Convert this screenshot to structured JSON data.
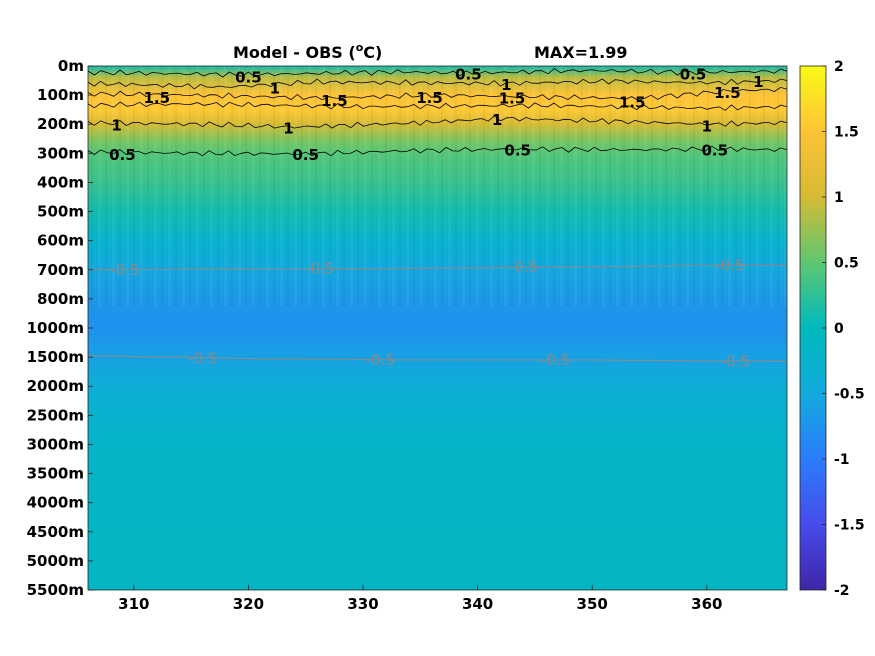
{
  "chart_data": {
    "type": "heatmap",
    "title": "Model - OBS (",
    "title_unit_sup": "o",
    "title_unit_end": "C)",
    "max_label": "MAX=1.99",
    "colormap": "parula",
    "clim": [
      -2,
      2
    ],
    "xlim": [
      306,
      367
    ],
    "x_ticks": [
      310,
      320,
      330,
      340,
      350,
      360
    ],
    "x_tick_labels": [
      "310",
      "320",
      "330",
      "340",
      "350",
      "360"
    ],
    "y_tick_labels": [
      "0m",
      "100m",
      "200m",
      "300m",
      "400m",
      "500m",
      "600m",
      "700m",
      "800m",
      "1000m",
      "1500m",
      "2000m",
      "2500m",
      "3000m",
      "3500m",
      "4000m",
      "4500m",
      "5000m",
      "5500m"
    ],
    "colorbar_ticks": [
      2,
      1.5,
      1,
      0.5,
      0,
      -0.5,
      -1,
      -1.5,
      -2
    ],
    "colorbar_tick_labels": [
      "2",
      "1.5",
      "1",
      "0.5",
      "0",
      "-0.5",
      "-1",
      "-1.5",
      "-2"
    ],
    "depth_profile": [
      {
        "level": 0,
        "value": 0.1
      },
      {
        "level": 0.4,
        "value": 0.9
      },
      {
        "level": 1,
        "value": 1.5
      },
      {
        "level": 1.5,
        "value": 1.55
      },
      {
        "level": 2,
        "value": 1.0
      },
      {
        "level": 2.6,
        "value": 0.6
      },
      {
        "level": 3,
        "value": 0.45
      },
      {
        "level": 4,
        "value": 0.3
      },
      {
        "level": 5,
        "value": 0.1
      },
      {
        "level": 6,
        "value": -0.25
      },
      {
        "level": 7,
        "value": -0.52
      },
      {
        "level": 8,
        "value": -0.7
      },
      {
        "level": 9,
        "value": -0.78
      },
      {
        "level": 10,
        "value": -0.6
      },
      {
        "level": 11,
        "value": -0.38
      },
      {
        "level": 12,
        "value": -0.25
      },
      {
        "level": 13,
        "value": -0.18
      },
      {
        "level": 14,
        "value": -0.14
      },
      {
        "level": 18,
        "value": -0.1
      }
    ],
    "contour_labels": [
      {
        "text": "0.5",
        "x": 320.0,
        "level": 0.4,
        "style": "pos"
      },
      {
        "text": "1",
        "x": 322.3,
        "level": 0.78,
        "style": "pos"
      },
      {
        "text": "1.5",
        "x": 312.0,
        "level": 1.1,
        "style": "pos"
      },
      {
        "text": "1.5",
        "x": 327.5,
        "level": 1.2,
        "style": "pos"
      },
      {
        "text": "0.5",
        "x": 339.2,
        "level": 0.3,
        "style": "pos"
      },
      {
        "text": "1",
        "x": 342.5,
        "level": 0.65,
        "style": "pos"
      },
      {
        "text": "1.5",
        "x": 335.8,
        "level": 1.1,
        "style": "pos"
      },
      {
        "text": "1.5",
        "x": 343.0,
        "level": 1.12,
        "style": "pos"
      },
      {
        "text": "1.5",
        "x": 353.5,
        "level": 1.25,
        "style": "pos"
      },
      {
        "text": "0.5",
        "x": 358.8,
        "level": 0.3,
        "style": "pos"
      },
      {
        "text": "1",
        "x": 364.5,
        "level": 0.55,
        "style": "pos"
      },
      {
        "text": "1.5",
        "x": 361.8,
        "level": 0.92,
        "style": "pos"
      },
      {
        "text": "1",
        "x": 308.5,
        "level": 2.05,
        "style": "pos"
      },
      {
        "text": "1",
        "x": 323.5,
        "level": 2.15,
        "style": "pos"
      },
      {
        "text": "1",
        "x": 341.7,
        "level": 1.85,
        "style": "pos"
      },
      {
        "text": "1",
        "x": 360.0,
        "level": 2.08,
        "style": "pos"
      },
      {
        "text": "0.5",
        "x": 309.0,
        "level": 3.05,
        "style": "pos"
      },
      {
        "text": "0.5",
        "x": 325.0,
        "level": 3.05,
        "style": "pos"
      },
      {
        "text": "0.5",
        "x": 343.5,
        "level": 2.9,
        "style": "pos"
      },
      {
        "text": "0.5",
        "x": 360.7,
        "level": 2.9,
        "style": "pos"
      },
      {
        "text": "-0.5",
        "x": 309.2,
        "level": 7.0,
        "style": "neg"
      },
      {
        "text": "-0.5",
        "x": 326.2,
        "level": 6.95,
        "style": "neg"
      },
      {
        "text": "-0.5",
        "x": 344.0,
        "level": 6.9,
        "style": "neg"
      },
      {
        "text": "-0.5",
        "x": 362.0,
        "level": 6.85,
        "style": "neg"
      },
      {
        "text": "-0.5",
        "x": 316.0,
        "level": 10.05,
        "style": "neg"
      },
      {
        "text": "-0.5",
        "x": 331.5,
        "level": 10.1,
        "style": "neg"
      },
      {
        "text": "-0.5",
        "x": 346.8,
        "level": 10.1,
        "style": "neg"
      },
      {
        "text": "-0.5",
        "x": 362.5,
        "level": 10.15,
        "style": "neg"
      }
    ],
    "contour_lines": [
      {
        "value": 0.5,
        "style": "pos",
        "points": [
          [
            306,
            0.22
          ],
          [
            320,
            0.3
          ],
          [
            333,
            0.2
          ],
          [
            339,
            0.25
          ],
          [
            350,
            0.15
          ],
          [
            358,
            0.22
          ],
          [
            367,
            0.18
          ]
        ]
      },
      {
        "value": 1,
        "style": "pos",
        "points": [
          [
            306,
            0.6
          ],
          [
            318,
            0.72
          ],
          [
            326,
            0.55
          ],
          [
            342,
            0.6
          ],
          [
            352,
            0.52
          ],
          [
            360,
            0.58
          ],
          [
            367,
            0.5
          ]
        ]
      },
      {
        "value": 1.5,
        "style": "pos",
        "points": [
          [
            306,
            0.95
          ],
          [
            315,
            1.0
          ],
          [
            327,
            1.1
          ],
          [
            336,
            1.0
          ],
          [
            344,
            1.05
          ],
          [
            354,
            1.12
          ],
          [
            362,
            0.85
          ],
          [
            367,
            0.8
          ]
        ]
      },
      {
        "value": 1.5,
        "style": "pos",
        "points": [
          [
            306,
            1.35
          ],
          [
            315,
            1.3
          ],
          [
            330,
            1.4
          ],
          [
            345,
            1.35
          ],
          [
            360,
            1.45
          ],
          [
            367,
            1.4
          ]
        ]
      },
      {
        "value": 1,
        "style": "pos",
        "points": [
          [
            306,
            1.95
          ],
          [
            316,
            2.0
          ],
          [
            324,
            2.1
          ],
          [
            335,
            1.95
          ],
          [
            342,
            1.8
          ],
          [
            352,
            1.9
          ],
          [
            360,
            2.0
          ],
          [
            367,
            1.95
          ]
        ]
      },
      {
        "value": 0.5,
        "style": "pos",
        "points": [
          [
            306,
            2.95
          ],
          [
            316,
            3.0
          ],
          [
            325,
            3.02
          ],
          [
            335,
            2.9
          ],
          [
            344,
            2.85
          ],
          [
            353,
            2.88
          ],
          [
            361,
            2.85
          ],
          [
            367,
            2.88
          ]
        ]
      },
      {
        "value": -0.5,
        "style": "neg",
        "points": [
          [
            306,
            7.0
          ],
          [
            320,
            6.98
          ],
          [
            335,
            6.95
          ],
          [
            350,
            6.9
          ],
          [
            360,
            6.85
          ],
          [
            367,
            6.85
          ]
        ]
      },
      {
        "value": -0.5,
        "style": "neg",
        "points": [
          [
            306,
            9.95
          ],
          [
            320,
            10.05
          ],
          [
            335,
            10.1
          ],
          [
            350,
            10.1
          ],
          [
            367,
            10.15
          ]
        ]
      }
    ]
  }
}
